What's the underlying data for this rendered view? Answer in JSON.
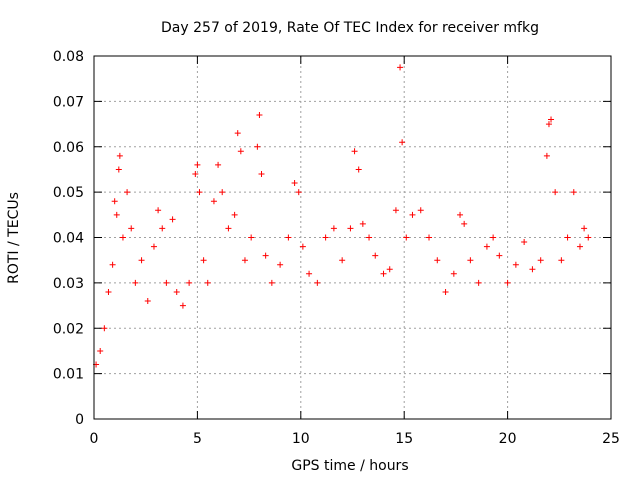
{
  "chart_data": {
    "type": "scatter",
    "title": "Day 257 of 2019, Rate Of TEC Index for receiver mfkg",
    "xlabel": "GPS time / hours",
    "ylabel": "ROTI / TECUs",
    "xlim": [
      0,
      25
    ],
    "ylim": [
      0,
      0.08
    ],
    "xticks": [
      0,
      5,
      10,
      15,
      20,
      25
    ],
    "yticks": [
      0,
      0.01,
      0.02,
      0.03,
      0.04,
      0.05,
      0.06,
      0.07,
      0.08
    ],
    "xtick_labels": [
      "0",
      "5",
      "10",
      "15",
      "20",
      "25"
    ],
    "ytick_labels": [
      "0",
      "0.01",
      "0.02",
      "0.03",
      "0.04",
      "0.05",
      "0.06",
      "0.07",
      "0.08"
    ],
    "grid": true,
    "marker": "+",
    "color": "#ff0000",
    "series": [
      {
        "name": "ROTI",
        "points": [
          [
            0.1,
            0.012
          ],
          [
            0.3,
            0.015
          ],
          [
            0.5,
            0.02
          ],
          [
            0.7,
            0.028
          ],
          [
            0.9,
            0.034
          ],
          [
            1.0,
            0.048
          ],
          [
            1.1,
            0.045
          ],
          [
            1.2,
            0.055
          ],
          [
            1.25,
            0.058
          ],
          [
            1.4,
            0.04
          ],
          [
            1.6,
            0.05
          ],
          [
            1.8,
            0.042
          ],
          [
            2.0,
            0.03
          ],
          [
            2.3,
            0.035
          ],
          [
            2.6,
            0.026
          ],
          [
            2.9,
            0.038
          ],
          [
            3.1,
            0.046
          ],
          [
            3.3,
            0.042
          ],
          [
            3.5,
            0.03
          ],
          [
            3.8,
            0.044
          ],
          [
            4.0,
            0.028
          ],
          [
            4.3,
            0.025
          ],
          [
            4.6,
            0.03
          ],
          [
            4.9,
            0.054
          ],
          [
            5.0,
            0.056
          ],
          [
            5.1,
            0.05
          ],
          [
            5.3,
            0.035
          ],
          [
            5.5,
            0.03
          ],
          [
            5.8,
            0.048
          ],
          [
            6.0,
            0.056
          ],
          [
            6.2,
            0.05
          ],
          [
            6.5,
            0.042
          ],
          [
            6.8,
            0.045
          ],
          [
            6.95,
            0.063
          ],
          [
            7.1,
            0.059
          ],
          [
            7.3,
            0.035
          ],
          [
            7.6,
            0.04
          ],
          [
            7.9,
            0.06
          ],
          [
            8.0,
            0.067
          ],
          [
            8.1,
            0.054
          ],
          [
            8.3,
            0.036
          ],
          [
            8.6,
            0.03
          ],
          [
            9.0,
            0.034
          ],
          [
            9.4,
            0.04
          ],
          [
            9.7,
            0.052
          ],
          [
            9.9,
            0.05
          ],
          [
            10.1,
            0.038
          ],
          [
            10.4,
            0.032
          ],
          [
            10.8,
            0.03
          ],
          [
            11.2,
            0.04
          ],
          [
            11.6,
            0.042
          ],
          [
            12.0,
            0.035
          ],
          [
            12.4,
            0.042
          ],
          [
            12.6,
            0.059
          ],
          [
            12.8,
            0.055
          ],
          [
            13.0,
            0.043
          ],
          [
            13.3,
            0.04
          ],
          [
            13.6,
            0.036
          ],
          [
            14.0,
            0.032
          ],
          [
            14.3,
            0.033
          ],
          [
            14.6,
            0.046
          ],
          [
            14.8,
            0.0775
          ],
          [
            14.9,
            0.061
          ],
          [
            15.1,
            0.04
          ],
          [
            15.4,
            0.045
          ],
          [
            15.8,
            0.046
          ],
          [
            16.2,
            0.04
          ],
          [
            16.6,
            0.035
          ],
          [
            17.0,
            0.028
          ],
          [
            17.4,
            0.032
          ],
          [
            17.7,
            0.045
          ],
          [
            17.9,
            0.043
          ],
          [
            18.2,
            0.035
          ],
          [
            18.6,
            0.03
          ],
          [
            19.0,
            0.038
          ],
          [
            19.3,
            0.04
          ],
          [
            19.6,
            0.036
          ],
          [
            20.0,
            0.03
          ],
          [
            20.4,
            0.034
          ],
          [
            20.8,
            0.039
          ],
          [
            21.2,
            0.033
          ],
          [
            21.6,
            0.035
          ],
          [
            21.9,
            0.058
          ],
          [
            22.0,
            0.065
          ],
          [
            22.1,
            0.066
          ],
          [
            22.3,
            0.05
          ],
          [
            22.6,
            0.035
          ],
          [
            22.9,
            0.04
          ],
          [
            23.2,
            0.05
          ],
          [
            23.5,
            0.038
          ],
          [
            23.7,
            0.042
          ],
          [
            23.9,
            0.04
          ]
        ]
      }
    ]
  }
}
